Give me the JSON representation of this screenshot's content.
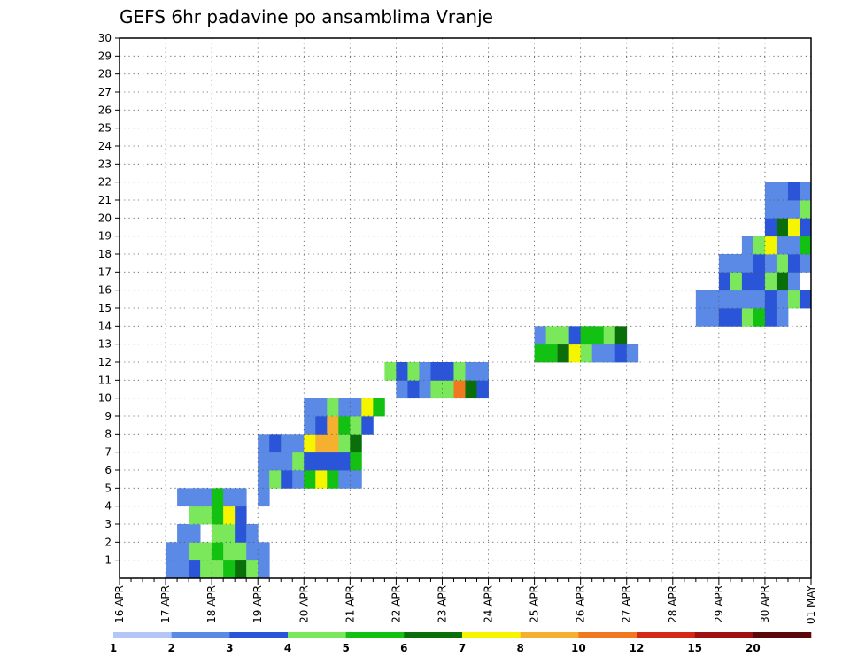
{
  "chart_data": {
    "type": "heatmap",
    "title": "GEFS 6hr padavine po ansamblima Vranje",
    "xlabel": "",
    "ylabel": "",
    "x_ticks": [
      "16 APR",
      "17 APR",
      "18 APR",
      "19 APR",
      "20 APR",
      "21 APR",
      "22 APR",
      "23 APR",
      "24 APR",
      "25 APR",
      "26 APR",
      "27 APR",
      "28 APR",
      "29 APR",
      "30 APR",
      "01 MAY"
    ],
    "y_ticks": [
      "1",
      "2",
      "3",
      "4",
      "5",
      "6",
      "7",
      "8",
      "9",
      "10",
      "11",
      "12",
      "13",
      "14",
      "15",
      "16",
      "17",
      "18",
      "19",
      "20",
      "21",
      "22",
      "23",
      "24",
      "25",
      "26",
      "27",
      "28",
      "29",
      "30"
    ],
    "xlim": [
      0,
      60
    ],
    "ylim": [
      0,
      30
    ],
    "grid": true,
    "x_unit": "6-hour step (4 per day), starting 16 APR",
    "colorbar": {
      "labels": [
        "1",
        "2",
        "3",
        "4",
        "5",
        "6",
        "7",
        "8",
        "10",
        "12",
        "15",
        "20"
      ],
      "colors": [
        "#b4c6f5",
        "#5a8ae6",
        "#2a55d9",
        "#7be85c",
        "#13c113",
        "#0a6e0a",
        "#f5f500",
        "#f5b030",
        "#f07820",
        "#d42818",
        "#a01010",
        "#5a0808"
      ]
    },
    "cells": [
      [
        4,
        1,
        1
      ],
      [
        5,
        1,
        1
      ],
      [
        6,
        1,
        2
      ],
      [
        7,
        1,
        3
      ],
      [
        8,
        1,
        3
      ],
      [
        9,
        1,
        4
      ],
      [
        10,
        1,
        5
      ],
      [
        11,
        1,
        3
      ],
      [
        12,
        1,
        1
      ],
      [
        4,
        2,
        1
      ],
      [
        5,
        2,
        1
      ],
      [
        6,
        2,
        3
      ],
      [
        7,
        2,
        3
      ],
      [
        8,
        2,
        4
      ],
      [
        9,
        2,
        3
      ],
      [
        10,
        2,
        3
      ],
      [
        11,
        2,
        1
      ],
      [
        12,
        2,
        1
      ],
      [
        5,
        3,
        1
      ],
      [
        6,
        3,
        1
      ],
      [
        8,
        3,
        3
      ],
      [
        9,
        3,
        3
      ],
      [
        10,
        3,
        2
      ],
      [
        11,
        3,
        1
      ],
      [
        6,
        4,
        3
      ],
      [
        7,
        4,
        3
      ],
      [
        8,
        4,
        4
      ],
      [
        9,
        4,
        6
      ],
      [
        10,
        4,
        2
      ],
      [
        5,
        5,
        1
      ],
      [
        6,
        5,
        1
      ],
      [
        7,
        5,
        1
      ],
      [
        8,
        5,
        4
      ],
      [
        9,
        5,
        1
      ],
      [
        10,
        5,
        1
      ],
      [
        12,
        5,
        1
      ],
      [
        12,
        6,
        1
      ],
      [
        13,
        6,
        3
      ],
      [
        14,
        6,
        2
      ],
      [
        15,
        6,
        1
      ],
      [
        16,
        6,
        4
      ],
      [
        17,
        6,
        6
      ],
      [
        18,
        6,
        4
      ],
      [
        19,
        6,
        1
      ],
      [
        20,
        6,
        1
      ],
      [
        12,
        7,
        1
      ],
      [
        13,
        7,
        1
      ],
      [
        14,
        7,
        1
      ],
      [
        15,
        7,
        3
      ],
      [
        16,
        7,
        2
      ],
      [
        17,
        7,
        2
      ],
      [
        18,
        7,
        2
      ],
      [
        19,
        7,
        2
      ],
      [
        20,
        7,
        4
      ],
      [
        12,
        8,
        1
      ],
      [
        13,
        8,
        2
      ],
      [
        14,
        8,
        1
      ],
      [
        15,
        8,
        1
      ],
      [
        16,
        8,
        6
      ],
      [
        17,
        8,
        7
      ],
      [
        18,
        8,
        7
      ],
      [
        19,
        8,
        3
      ],
      [
        20,
        8,
        5
      ],
      [
        16,
        9,
        1
      ],
      [
        17,
        9,
        2
      ],
      [
        18,
        9,
        7
      ],
      [
        19,
        9,
        4
      ],
      [
        20,
        9,
        3
      ],
      [
        21,
        9,
        2
      ],
      [
        16,
        10,
        1
      ],
      [
        17,
        10,
        1
      ],
      [
        18,
        10,
        3
      ],
      [
        19,
        10,
        1
      ],
      [
        20,
        10,
        1
      ],
      [
        21,
        10,
        6
      ],
      [
        22,
        10,
        4
      ],
      [
        24,
        11,
        1
      ],
      [
        25,
        11,
        2
      ],
      [
        26,
        11,
        1
      ],
      [
        27,
        11,
        3
      ],
      [
        28,
        11,
        3
      ],
      [
        29,
        11,
        8
      ],
      [
        30,
        11,
        5
      ],
      [
        31,
        11,
        2
      ],
      [
        23,
        12,
        3
      ],
      [
        24,
        12,
        2
      ],
      [
        25,
        12,
        3
      ],
      [
        26,
        12,
        1
      ],
      [
        27,
        12,
        2
      ],
      [
        28,
        12,
        2
      ],
      [
        29,
        12,
        3
      ],
      [
        30,
        12,
        1
      ],
      [
        31,
        12,
        1
      ],
      [
        36,
        13,
        4
      ],
      [
        37,
        13,
        4
      ],
      [
        38,
        13,
        5
      ],
      [
        39,
        13,
        6
      ],
      [
        40,
        13,
        3
      ],
      [
        41,
        13,
        1
      ],
      [
        42,
        13,
        1
      ],
      [
        43,
        13,
        2
      ],
      [
        44,
        13,
        1
      ],
      [
        36,
        14,
        1
      ],
      [
        37,
        14,
        3
      ],
      [
        38,
        14,
        3
      ],
      [
        39,
        14,
        2
      ],
      [
        40,
        14,
        4
      ],
      [
        41,
        14,
        4
      ],
      [
        42,
        14,
        3
      ],
      [
        43,
        14,
        5
      ],
      [
        50,
        15,
        1
      ],
      [
        51,
        15,
        1
      ],
      [
        52,
        15,
        2
      ],
      [
        53,
        15,
        2
      ],
      [
        54,
        15,
        3
      ],
      [
        55,
        15,
        4
      ],
      [
        56,
        15,
        2
      ],
      [
        57,
        15,
        1
      ],
      [
        50,
        16,
        1
      ],
      [
        51,
        16,
        1
      ],
      [
        52,
        16,
        1
      ],
      [
        53,
        16,
        1
      ],
      [
        54,
        16,
        1
      ],
      [
        55,
        16,
        1
      ],
      [
        56,
        16,
        2
      ],
      [
        57,
        16,
        1
      ],
      [
        58,
        16,
        3
      ],
      [
        59,
        16,
        2
      ],
      [
        52,
        17,
        2
      ],
      [
        53,
        17,
        3
      ],
      [
        54,
        17,
        2
      ],
      [
        55,
        17,
        2
      ],
      [
        56,
        17,
        3
      ],
      [
        57,
        17,
        5
      ],
      [
        58,
        17,
        1
      ],
      [
        52,
        18,
        1
      ],
      [
        53,
        18,
        1
      ],
      [
        54,
        18,
        1
      ],
      [
        55,
        18,
        2
      ],
      [
        56,
        18,
        1
      ],
      [
        57,
        18,
        3
      ],
      [
        58,
        18,
        2
      ],
      [
        59,
        18,
        1
      ],
      [
        54,
        19,
        1
      ],
      [
        55,
        19,
        3
      ],
      [
        56,
        19,
        6
      ],
      [
        57,
        19,
        1
      ],
      [
        58,
        19,
        1
      ],
      [
        59,
        19,
        4
      ],
      [
        56,
        20,
        2
      ],
      [
        57,
        20,
        5
      ],
      [
        58,
        20,
        6
      ],
      [
        59,
        20,
        2
      ],
      [
        56,
        21,
        1
      ],
      [
        57,
        21,
        1
      ],
      [
        58,
        21,
        1
      ],
      [
        59,
        21,
        3
      ],
      [
        56,
        22,
        1
      ],
      [
        57,
        22,
        1
      ],
      [
        58,
        22,
        2
      ],
      [
        59,
        22,
        1
      ]
    ]
  }
}
